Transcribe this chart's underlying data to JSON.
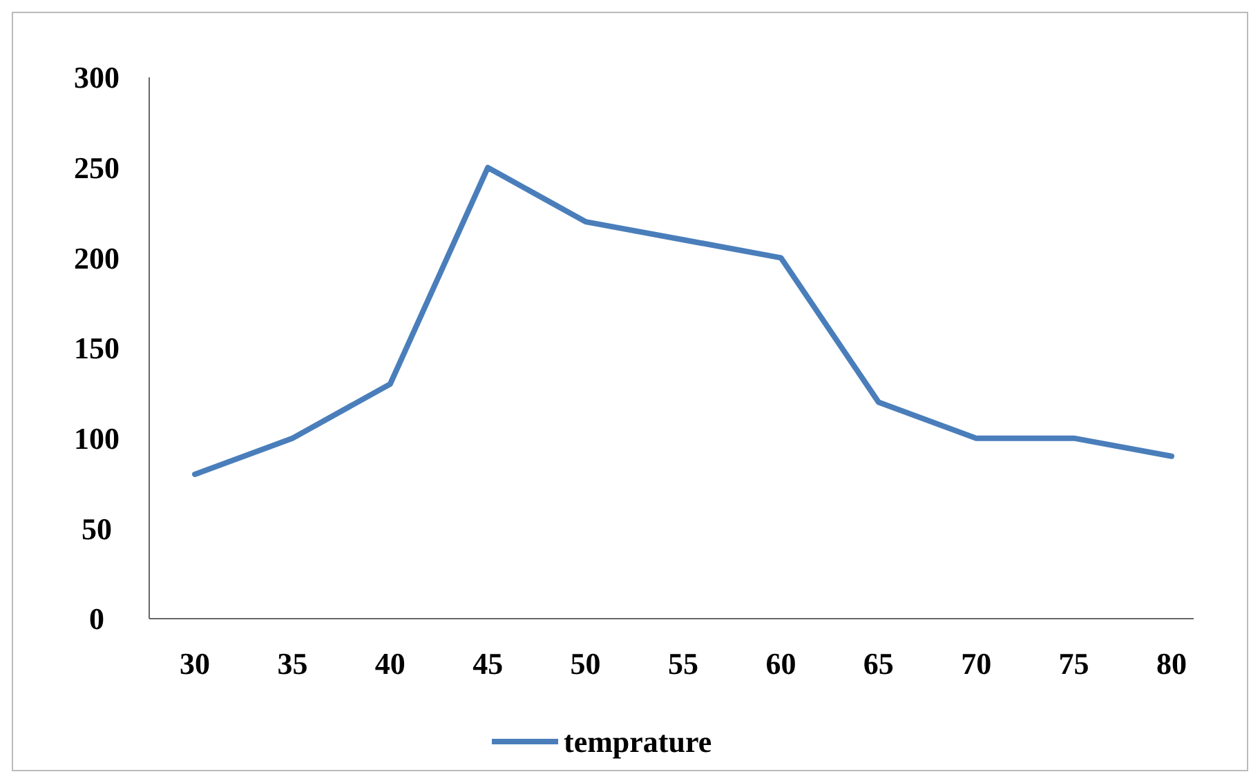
{
  "chart_data": {
    "type": "line",
    "categories": [
      "30",
      "35",
      "40",
      "45",
      "50",
      "55",
      "60",
      "65",
      "70",
      "75",
      "80"
    ],
    "series": [
      {
        "name": "temprature",
        "color": "#4a7ebb",
        "values": [
          80,
          100,
          130,
          250,
          220,
          210,
          200,
          120,
          100,
          100,
          90
        ]
      }
    ],
    "ylim": [
      0,
      300
    ],
    "yticks": [
      0,
      50,
      100,
      150,
      200,
      250,
      300
    ],
    "grid": false,
    "legend": "bottom",
    "marker": "none",
    "line_style": "solid"
  }
}
